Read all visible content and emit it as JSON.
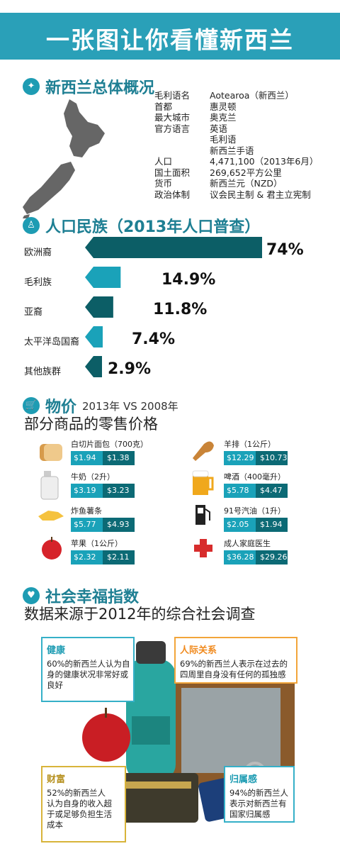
{
  "header": {
    "title": "一张图让你看懂新西兰"
  },
  "overview": {
    "title": "新西兰总体概况",
    "rows": [
      {
        "k": "毛利语名",
        "v": "Aotearoa（新西兰）"
      },
      {
        "k": "首都",
        "v": "惠灵顿"
      },
      {
        "k": "最大城市",
        "v": "奥克兰"
      },
      {
        "k": "官方语言",
        "v": "英语"
      },
      {
        "k": "",
        "v": "毛利语"
      },
      {
        "k": "",
        "v": "新西兰手语"
      },
      {
        "k": "人口",
        "v": "4,471,100（2013年6月）"
      },
      {
        "k": "国土面积",
        "v": "269,652平方公里"
      },
      {
        "k": "货币",
        "v": "新西兰元（NZD）"
      },
      {
        "k": "政治体制",
        "v": "议会民主制 & 君主立宪制"
      }
    ]
  },
  "ethnic": {
    "title": "人口民族（2013年人口普查）",
    "items": [
      {
        "label": "欧洲裔",
        "pct": "74%",
        "value": 74
      },
      {
        "label": "毛利族",
        "pct": "14.9%",
        "value": 14.9
      },
      {
        "label": "亚裔",
        "pct": "11.8%",
        "value": 11.8
      },
      {
        "label": "太平洋岛国裔",
        "pct": "7.4%",
        "value": 7.4
      },
      {
        "label": "其他族群",
        "pct": "2.9%",
        "value": 2.9
      }
    ]
  },
  "prices": {
    "title": "物价",
    "subtitle": "2013年 VS 2008年",
    "title2": "部分商品的零售价格",
    "items": [
      {
        "name": "白切片面包（700克）",
        "a": "$1.94",
        "b": "$1.38",
        "icon": "bread-icon"
      },
      {
        "name": "羊排（1公斤）",
        "a": "$12.29",
        "b": "$10.73",
        "icon": "lamb-chop-icon"
      },
      {
        "name": "牛奶（2升）",
        "a": "$3.19",
        "b": "$3.23",
        "icon": "milk-icon"
      },
      {
        "name": "啤酒（400毫升）",
        "a": "$5.78",
        "b": "$4.47",
        "icon": "beer-icon"
      },
      {
        "name": "炸鱼薯条",
        "a": "$5.77",
        "b": "$4.93",
        "icon": "fish-chips-icon"
      },
      {
        "name": "91号汽油（1升）",
        "a": "$2.05",
        "b": "$1.94",
        "icon": "fuel-pump-icon"
      },
      {
        "name": "苹果（1公斤）",
        "a": "$2.32",
        "b": "$2.11",
        "icon": "apple-icon"
      },
      {
        "name": "成人家庭医生",
        "a": "$36.28",
        "b": "$29.26",
        "icon": "medical-cross-icon"
      }
    ]
  },
  "wellbeing": {
    "title": "社会幸福指数",
    "title2": "数据来源于2012年的综合社会调查",
    "boxes": [
      {
        "title": "健康",
        "text": "60%的新西兰人认为自身的健康状况非常好或良好"
      },
      {
        "title": "人际关系",
        "text": "69%的新西兰人表示在过去的四周里自身没有任何的孤独感"
      },
      {
        "title": "财富",
        "text": "52%的新西兰人认为自身的收入超于或足够负担生活成本"
      },
      {
        "title": "归属感",
        "text": "94%的新西兰人表示对新西兰有国家归属感"
      }
    ]
  },
  "colors": {
    "teal": "#1e9cb3",
    "dark_teal": "#0c6a75",
    "orange": "#f08a1e"
  }
}
